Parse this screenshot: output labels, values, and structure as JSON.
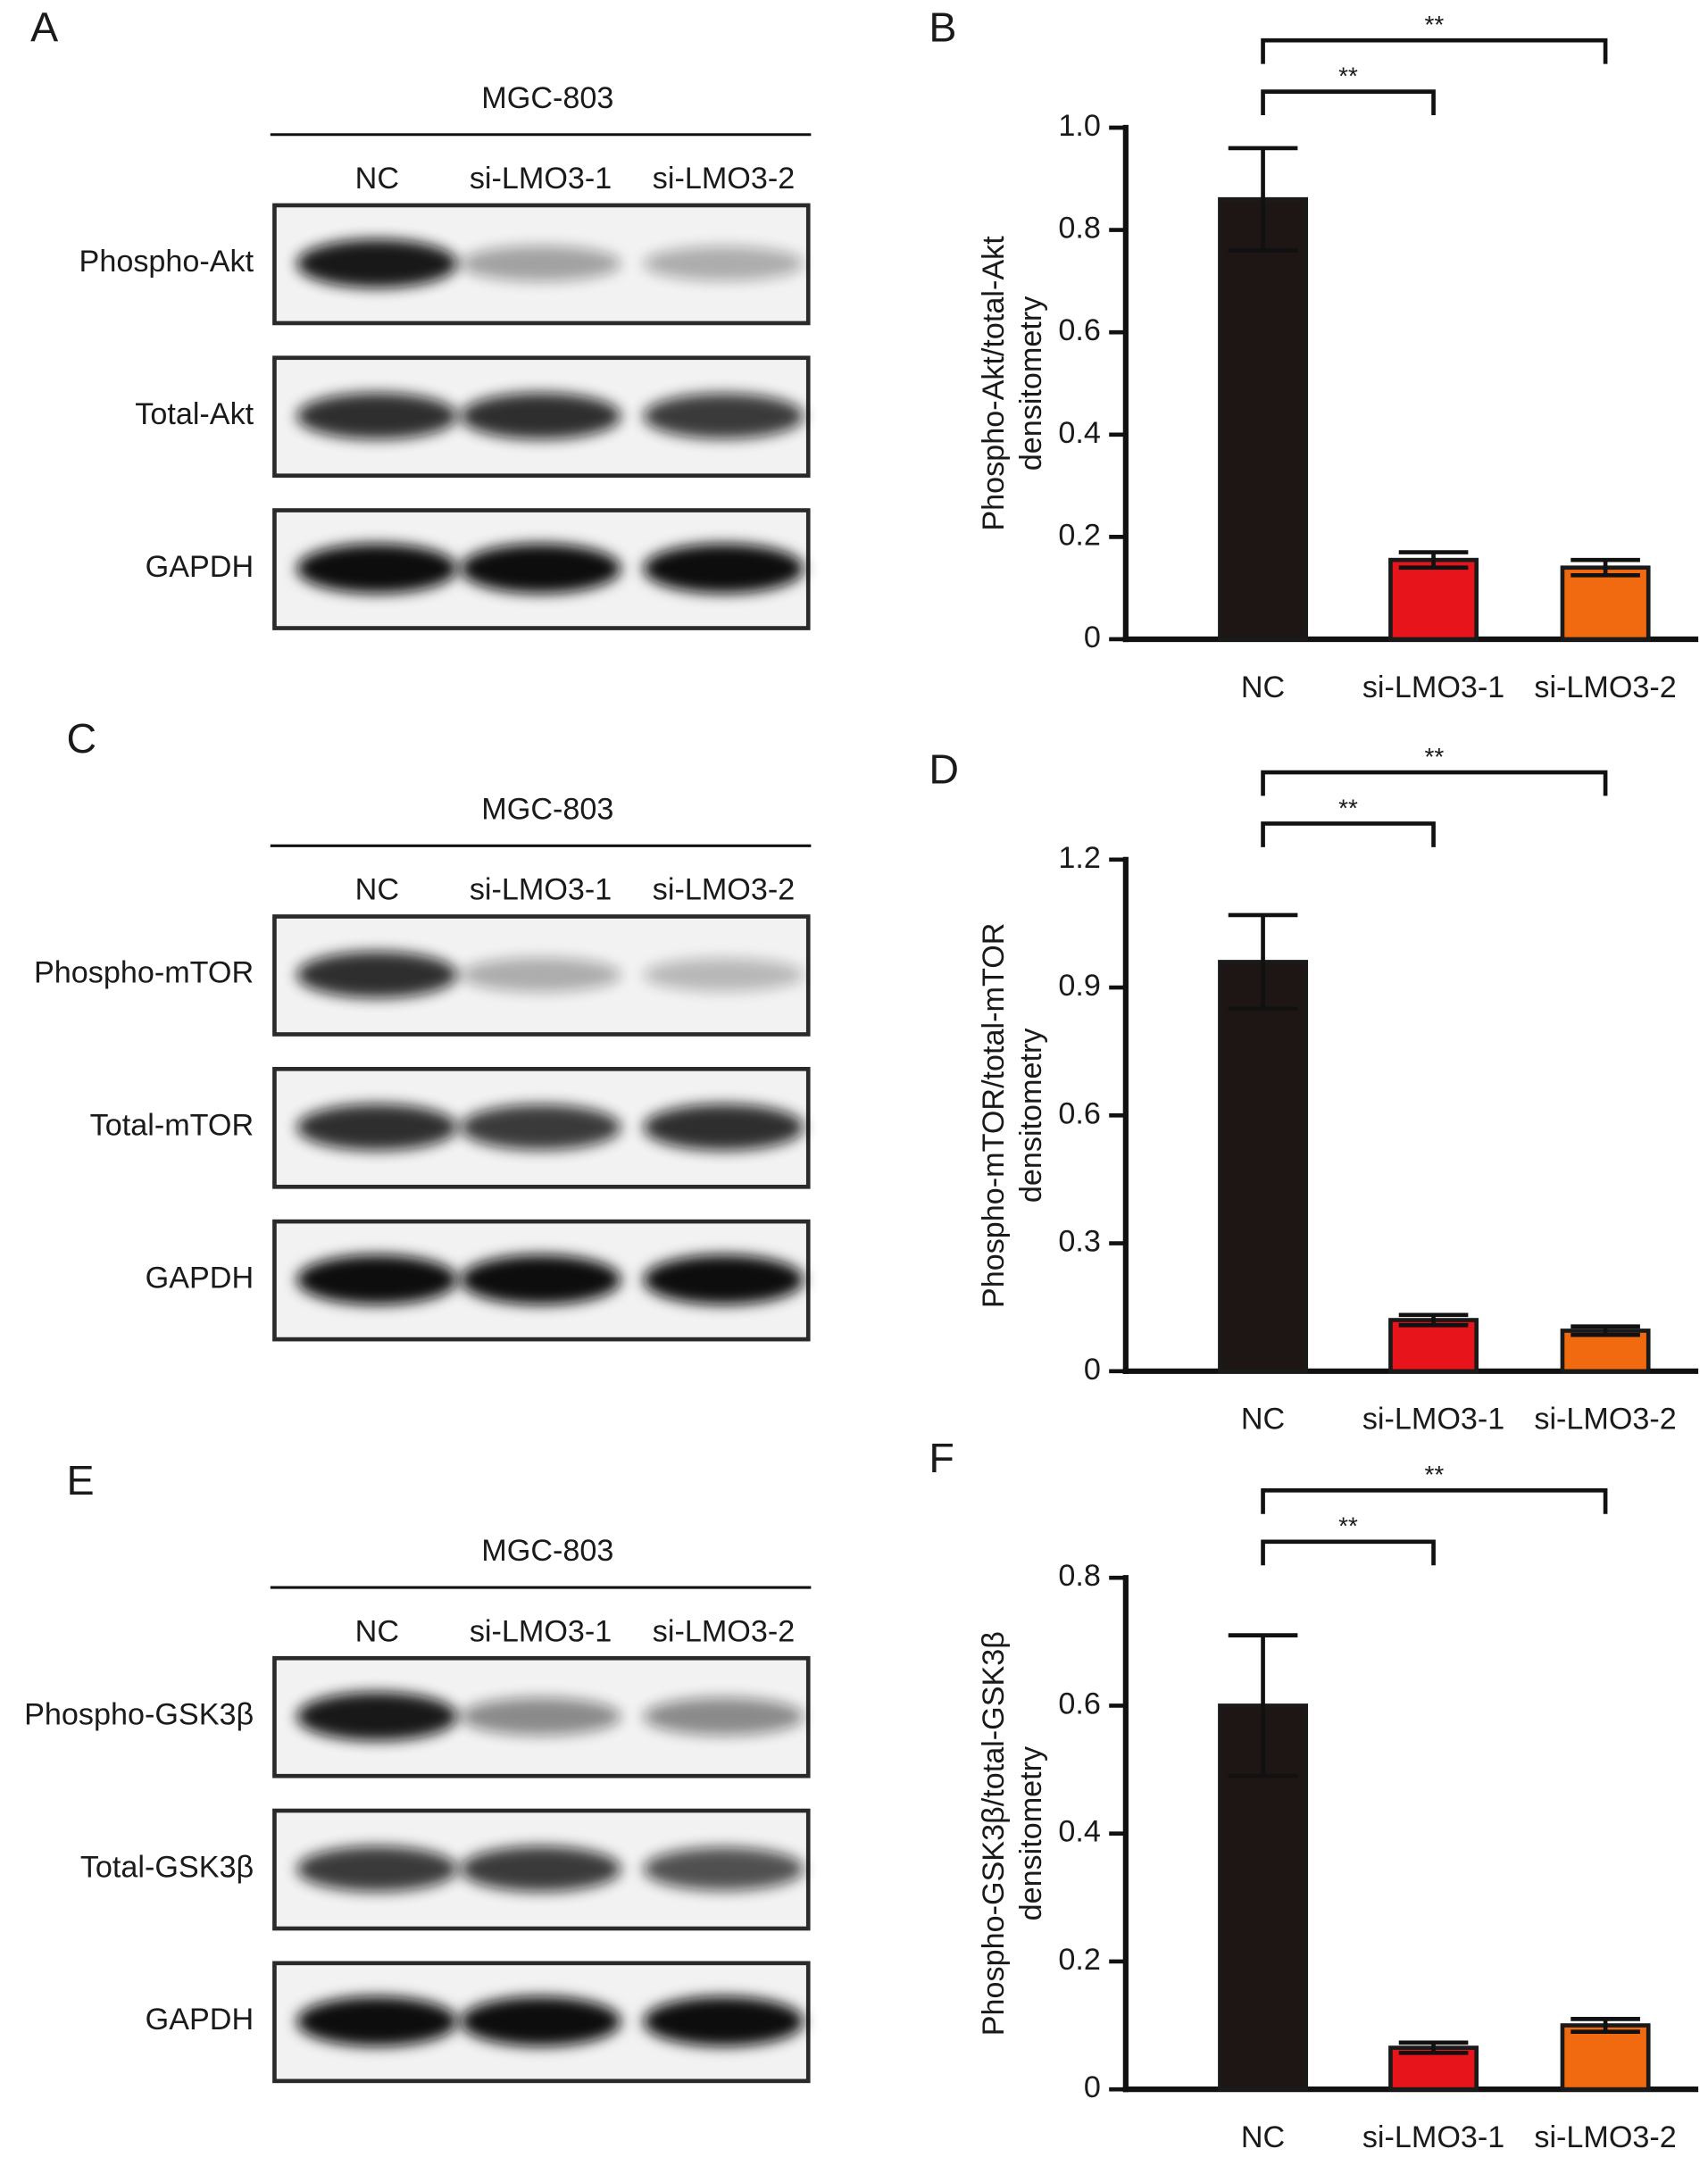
{
  "panels": [
    {
      "letter": "A",
      "cell_line": "MGC-803",
      "lanes": [
        "NC",
        "si-LMO3-1",
        "si-LMO3-2"
      ],
      "rows": [
        "Phospho-Akt",
        "Total-Akt",
        "GAPDH"
      ]
    },
    {
      "letter": "C",
      "cell_line": "MGC-803",
      "lanes": [
        "NC",
        "si-LMO3-1",
        "si-LMO3-2"
      ],
      "rows": [
        "Phospho-mTOR",
        "Total-mTOR",
        "GAPDH"
      ]
    },
    {
      "letter": "E",
      "cell_line": "MGC-803",
      "lanes": [
        "NC",
        "si-LMO3-1",
        "si-LMO3-2"
      ],
      "rows": [
        "Phospho-GSK3β",
        "Total-GSK3β",
        "GAPDH"
      ]
    }
  ],
  "chart_data": [
    {
      "type": "bar",
      "label": "B",
      "ylabel": [
        "Phospho-Akt/total-Akt",
        "densitometry"
      ],
      "categories": [
        "NC",
        "si-LMO3-1",
        "si-LMO3-2"
      ],
      "values": [
        0.86,
        0.155,
        0.14
      ],
      "errors": [
        0.1,
        0.015,
        0.015
      ],
      "colors": [
        "#1e1614",
        "#e8141c",
        "#f26a10"
      ],
      "significance": [
        "**",
        "**"
      ],
      "ylim": [
        0,
        1
      ],
      "yticks": [
        0,
        0.2,
        0.4,
        0.6,
        0.8,
        {
          "value": 1,
          "label": "1.0"
        }
      ]
    },
    {
      "type": "bar",
      "label": "D",
      "ylabel": [
        "Phospho-mTOR/total-mTOR",
        "densitometry"
      ],
      "categories": [
        "NC",
        "si-LMO3-1",
        "si-LMO3-2"
      ],
      "values": [
        0.96,
        0.12,
        0.095
      ],
      "errors": [
        0.11,
        0.012,
        0.01
      ],
      "colors": [
        "#1e1614",
        "#e8141c",
        "#f26a10"
      ],
      "significance": [
        "**",
        "**"
      ],
      "ylim": [
        0,
        1.2
      ],
      "yticks": [
        0,
        0.3,
        0.6,
        0.9,
        1.2
      ]
    },
    {
      "type": "bar",
      "label": "F",
      "ylabel": [
        "Phospho-GSK3β/total-GSK3β",
        "densitometry"
      ],
      "categories": [
        "NC",
        "si-LMO3-1",
        "si-LMO3-2"
      ],
      "values": [
        0.6,
        0.065,
        0.1
      ],
      "errors": [
        0.11,
        0.008,
        0.01
      ],
      "colors": [
        "#1e1614",
        "#e8141c",
        "#f26a10"
      ],
      "significance": [
        "**",
        "**"
      ],
      "ylim": [
        0,
        0.8
      ],
      "yticks": [
        0,
        0.2,
        0.4,
        0.6,
        0.8
      ]
    }
  ]
}
